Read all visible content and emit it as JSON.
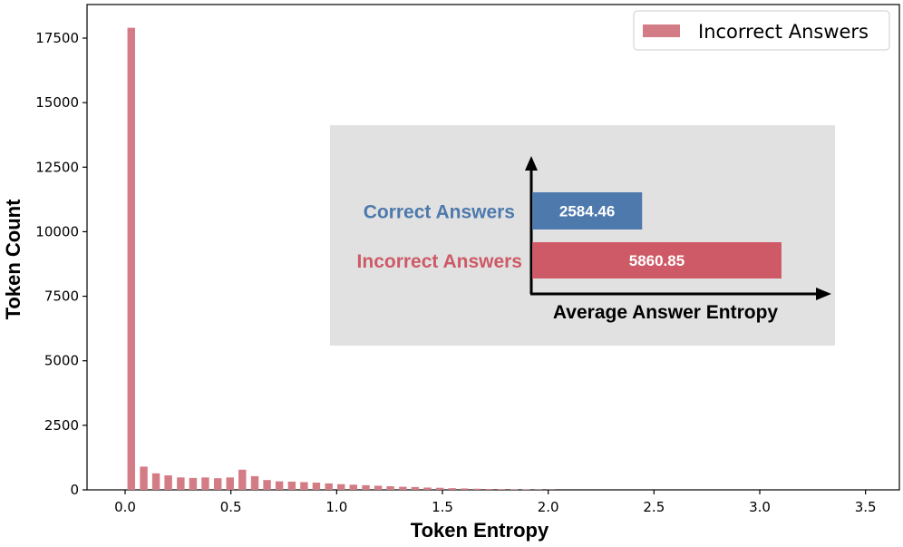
{
  "chart_data": {
    "type": "bar",
    "xlabel": "Token Entropy",
    "ylabel": "Token Count",
    "xlim": [
      -0.18,
      3.66
    ],
    "ylim": [
      0,
      18800
    ],
    "x_ticks": [
      "0.0",
      "0.5",
      "1.0",
      "1.5",
      "2.0",
      "2.5",
      "3.0",
      "3.5"
    ],
    "y_ticks": [
      "0",
      "2500",
      "5000",
      "7500",
      "10000",
      "12500",
      "15000",
      "17500"
    ],
    "bin_width": 0.0583,
    "bar_color": "#d47c86",
    "series": [
      {
        "name": "Incorrect Answers",
        "x": [
          0.029,
          0.088,
          0.146,
          0.204,
          0.263,
          0.321,
          0.379,
          0.438,
          0.496,
          0.554,
          0.613,
          0.671,
          0.729,
          0.788,
          0.846,
          0.904,
          0.963,
          1.021,
          1.079,
          1.138,
          1.196,
          1.254,
          1.313,
          1.371,
          1.429,
          1.488,
          1.546,
          1.604,
          1.663,
          1.721,
          1.779,
          1.838,
          1.896,
          1.954,
          2.013
        ],
        "values": [
          17900,
          900,
          640,
          560,
          480,
          460,
          480,
          450,
          480,
          780,
          530,
          380,
          330,
          320,
          300,
          280,
          250,
          220,
          200,
          180,
          160,
          140,
          120,
          110,
          90,
          80,
          65,
          55,
          45,
          35,
          28,
          22,
          18,
          12,
          8
        ]
      }
    ],
    "legend": {
      "placement": "top-right",
      "entries": [
        "Incorrect Answers"
      ]
    },
    "grid": false,
    "inset": {
      "type": "bar",
      "orientation": "horizontal",
      "xlabel": "Average Answer Entropy",
      "xlim": [
        0,
        6800
      ],
      "bars": [
        {
          "label": "Correct Answers",
          "value": 2584.46,
          "value_label": "2584.46",
          "color": "#4e79ad"
        },
        {
          "label": "Incorrect Answers",
          "value": 5860.85,
          "value_label": "5860.85",
          "color": "#cd5a66"
        }
      ],
      "background": "#e1e1e1"
    }
  }
}
